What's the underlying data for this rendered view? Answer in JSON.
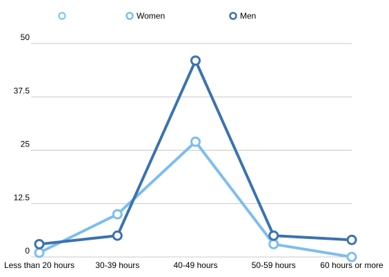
{
  "chart_data": {
    "type": "line",
    "categories": [
      "Less than 20 hours",
      "30-39 hours",
      "40-49 hours",
      "50-59 hours",
      "60 hours or more"
    ],
    "series": [
      {
        "name": "Women",
        "color": "#7cbdf0",
        "values": [
          1,
          10,
          27,
          3,
          0
        ]
      },
      {
        "name": "Men",
        "color": "#3a72b0",
        "values": [
          3,
          5,
          46,
          5,
          4
        ]
      }
    ],
    "ylim": [
      0,
      50
    ],
    "yticks": [
      0,
      12.5,
      25,
      37.5,
      50
    ],
    "grid": true,
    "legend": "top"
  }
}
